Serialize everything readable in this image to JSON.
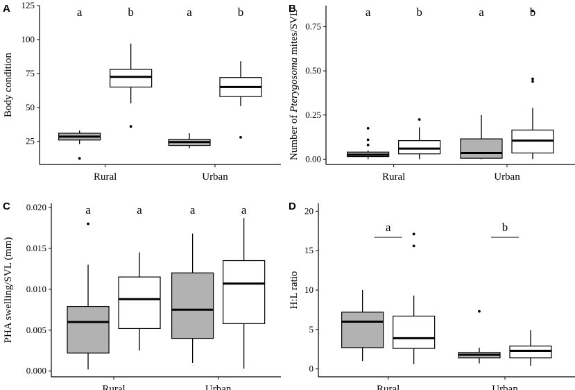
{
  "colors": {
    "rural_fill": "#b2b2b2",
    "urban_fill": "#ffffff",
    "stroke": "#000000"
  },
  "chart_data": [
    {
      "id": "A",
      "type": "boxplot",
      "panel_label": "A",
      "ylabel": "Body condition",
      "ylabel_parts": [
        {
          "text": "Body condition",
          "italic": false
        }
      ],
      "ylim": [
        8,
        125
      ],
      "yticks": [
        25,
        50,
        75,
        100,
        125
      ],
      "ytick_labels": [
        "25",
        "50",
        "75",
        "100",
        "125"
      ],
      "categories": [
        "Rural",
        "Urban"
      ],
      "groups": [
        {
          "category": "Rural",
          "fill": "gray",
          "low": 23,
          "q1": 26,
          "median": 28.5,
          "q3": 31,
          "high": 33,
          "outliers": [
            12.5
          ]
        },
        {
          "category": "Rural",
          "fill": "white",
          "low": 53,
          "q1": 65,
          "median": 72.5,
          "q3": 78,
          "high": 97,
          "outliers": [
            36
          ]
        },
        {
          "category": "Urban",
          "fill": "gray",
          "low": 20,
          "q1": 22,
          "median": 24.5,
          "q3": 26.5,
          "high": 31,
          "outliers": []
        },
        {
          "category": "Urban",
          "fill": "white",
          "low": 51,
          "q1": 58,
          "median": 65,
          "q3": 72,
          "high": 84,
          "outliers": [
            28
          ]
        }
      ],
      "significance": [
        {
          "category": "Rural",
          "items": [
            {
              "text": "a",
              "side": "left"
            },
            {
              "text": "b",
              "side": "right"
            }
          ]
        },
        {
          "category": "Urban",
          "items": [
            {
              "text": "a",
              "side": "left"
            },
            {
              "text": "b",
              "side": "right"
            }
          ]
        }
      ]
    },
    {
      "id": "B",
      "type": "boxplot",
      "panel_label": "B",
      "ylabel": "Number of Pterygosoma mites/SVL",
      "ylabel_parts": [
        {
          "text": "Number of ",
          "italic": false
        },
        {
          "text": "Pterygosoma",
          "italic": true
        },
        {
          "text": " mites/SVL",
          "italic": false
        }
      ],
      "ylim": [
        -0.03,
        0.87
      ],
      "yticks": [
        0,
        0.25,
        0.5,
        0.75
      ],
      "ytick_labels": [
        "0.00",
        "0.25",
        "0.50",
        "0.75"
      ],
      "categories": [
        "Rural",
        "Urban"
      ],
      "groups": [
        {
          "category": "Rural",
          "fill": "gray",
          "low": 0.0,
          "q1": 0.015,
          "median": 0.025,
          "q3": 0.04,
          "high": 0.05,
          "outliers": [
            0.08,
            0.11,
            0.175
          ]
        },
        {
          "category": "Rural",
          "fill": "white",
          "low": 0.0,
          "q1": 0.03,
          "median": 0.06,
          "q3": 0.105,
          "high": 0.18,
          "outliers": [
            0.225
          ]
        },
        {
          "category": "Urban",
          "fill": "gray",
          "low": 0.0,
          "q1": 0.005,
          "median": 0.035,
          "q3": 0.115,
          "high": 0.25,
          "outliers": []
        },
        {
          "category": "Urban",
          "fill": "white",
          "low": 0.0,
          "q1": 0.035,
          "median": 0.105,
          "q3": 0.165,
          "high": 0.29,
          "outliers": [
            0.44,
            0.455,
            0.84
          ]
        }
      ],
      "significance": [
        {
          "category": "Rural",
          "items": [
            {
              "text": "a",
              "side": "left"
            },
            {
              "text": "b",
              "side": "right"
            }
          ]
        },
        {
          "category": "Urban",
          "items": [
            {
              "text": "a",
              "side": "left"
            },
            {
              "text": "b",
              "side": "right"
            }
          ]
        }
      ]
    },
    {
      "id": "C",
      "type": "boxplot",
      "panel_label": "C",
      "ylabel": "PHA swelling/SVL (mm)",
      "ylabel_parts": [
        {
          "text": "PHA swelling/SVL (mm)",
          "italic": false
        }
      ],
      "ylim": [
        -0.0007,
        0.0205
      ],
      "yticks": [
        0,
        0.005,
        0.01,
        0.015,
        0.02
      ],
      "ytick_labels": [
        "0.000",
        "0.005",
        "0.010",
        "0.015",
        "0.020"
      ],
      "categories": [
        "Rural",
        "Urban"
      ],
      "groups": [
        {
          "category": "Rural",
          "fill": "gray",
          "low": 0.0002,
          "q1": 0.0022,
          "median": 0.006,
          "q3": 0.0079,
          "high": 0.013,
          "outliers": [
            0.018
          ]
        },
        {
          "category": "Rural",
          "fill": "white",
          "low": 0.0025,
          "q1": 0.0052,
          "median": 0.0088,
          "q3": 0.0115,
          "high": 0.0145,
          "outliers": []
        },
        {
          "category": "Urban",
          "fill": "gray",
          "low": 0.001,
          "q1": 0.004,
          "median": 0.0075,
          "q3": 0.012,
          "high": 0.0168,
          "outliers": []
        },
        {
          "category": "Urban",
          "fill": "white",
          "low": 0.0003,
          "q1": 0.0058,
          "median": 0.0107,
          "q3": 0.0135,
          "high": 0.0187,
          "outliers": []
        }
      ],
      "significance": [
        {
          "category": "Rural",
          "items": [
            {
              "text": "a",
              "side": "left"
            },
            {
              "text": "a",
              "side": "right"
            }
          ]
        },
        {
          "category": "Urban",
          "items": [
            {
              "text": "a",
              "side": "left"
            },
            {
              "text": "a",
              "side": "right"
            }
          ]
        }
      ]
    },
    {
      "id": "D",
      "type": "boxplot",
      "panel_label": "D",
      "ylabel": "H:L ratio",
      "ylabel_parts": [
        {
          "text": "H:L ratio",
          "italic": false
        }
      ],
      "ylim": [
        -1,
        21
      ],
      "yticks": [
        0,
        5,
        10,
        15,
        20
      ],
      "ytick_labels": [
        "0",
        "5",
        "10",
        "15",
        "20"
      ],
      "categories": [
        "Rural",
        "Urban"
      ],
      "groups": [
        {
          "category": "Rural",
          "fill": "gray",
          "low": 1.0,
          "q1": 2.7,
          "median": 6.0,
          "q3": 7.2,
          "high": 10.0,
          "outliers": []
        },
        {
          "category": "Rural",
          "fill": "white",
          "low": 0.6,
          "q1": 2.6,
          "median": 3.9,
          "q3": 6.7,
          "high": 9.3,
          "outliers": [
            15.6,
            17.1
          ]
        },
        {
          "category": "Urban",
          "fill": "gray",
          "low": 0.7,
          "q1": 1.4,
          "median": 1.8,
          "q3": 2.1,
          "high": 2.7,
          "outliers": [
            7.3
          ]
        },
        {
          "category": "Urban",
          "fill": "white",
          "low": 0.4,
          "q1": 1.4,
          "median": 2.3,
          "q3": 2.9,
          "high": 4.9,
          "outliers": []
        }
      ],
      "significance": [
        {
          "category": "Rural",
          "items": [
            {
              "text": "a",
              "side": "center",
              "bar": true
            }
          ]
        },
        {
          "category": "Urban",
          "items": [
            {
              "text": "b",
              "side": "center",
              "bar": true
            }
          ]
        }
      ]
    }
  ]
}
